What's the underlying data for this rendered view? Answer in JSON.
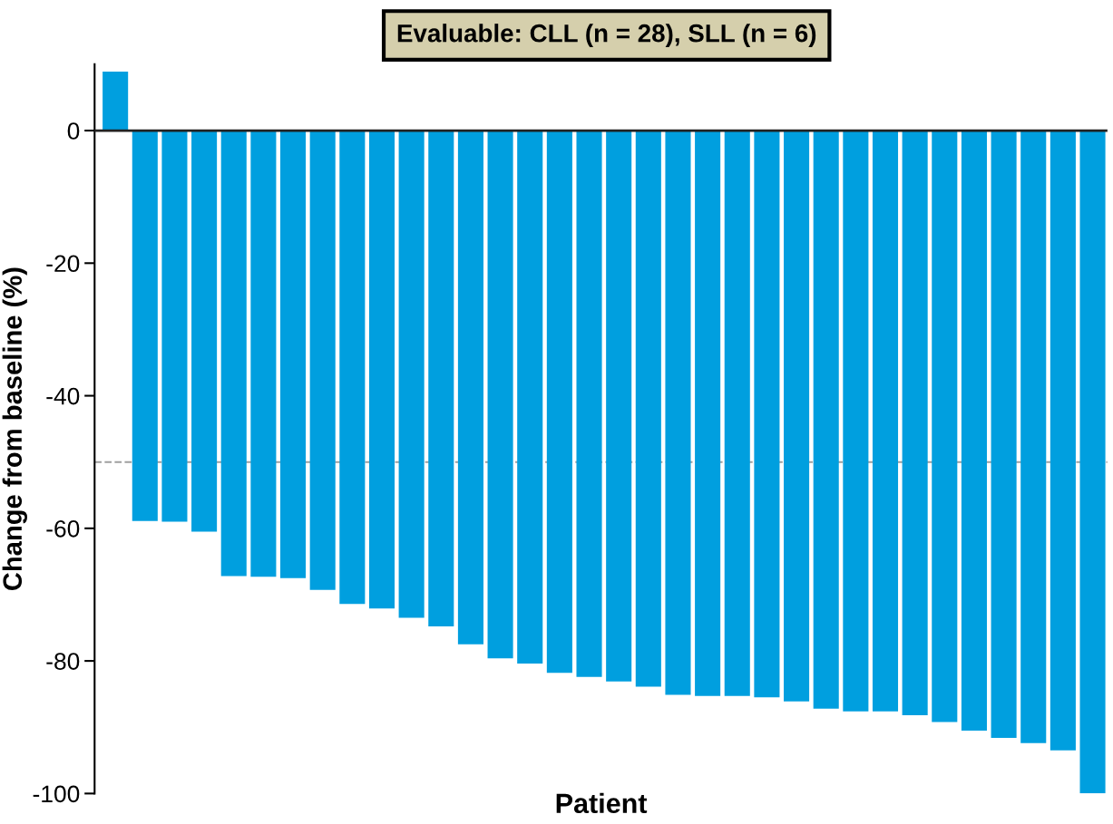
{
  "chart_data": {
    "type": "bar",
    "title": "Evaluable: CLL (n = 28), SLL (n = 6)",
    "xlabel": "Patient",
    "ylabel": "Change from baseline (%)",
    "categories": [
      null,
      null,
      null,
      null,
      null,
      null,
      null,
      null,
      null,
      null,
      null,
      null,
      null,
      null,
      null,
      null,
      null,
      null,
      null,
      null,
      null,
      null,
      null,
      null,
      null,
      null,
      null,
      null,
      null,
      null,
      null,
      null,
      null,
      null
    ],
    "values": [
      8.9,
      -58.9,
      -59.0,
      -60.5,
      -67.2,
      -67.3,
      -67.5,
      -69.3,
      -71.4,
      -72.1,
      -73.5,
      -74.8,
      -77.5,
      -79.6,
      -80.4,
      -81.8,
      -82.4,
      -83.1,
      -83.9,
      -85.1,
      -85.3,
      -85.3,
      -85.5,
      -86.1,
      -87.2,
      -87.6,
      -87.6,
      -88.2,
      -89.2,
      -90.5,
      -91.6,
      -92.4,
      -93.5,
      -100
    ],
    "color": "#009fdf",
    "ylim": [
      -100,
      10
    ],
    "yticks": [
      -100,
      -80,
      -60,
      -40,
      -20,
      0
    ],
    "ref_lines": [
      {
        "axis": "y",
        "value": -50,
        "color": "#a0a0a0",
        "line_style": "dashed"
      }
    ]
  }
}
